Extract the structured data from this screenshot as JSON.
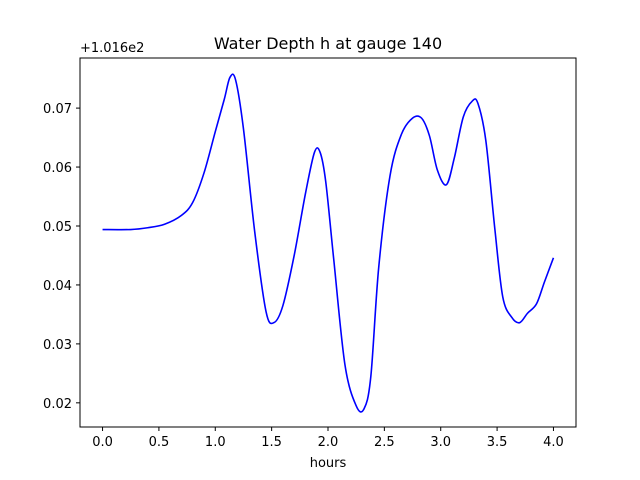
{
  "chart_data": {
    "type": "line",
    "title": "Water Depth h at gauge 140",
    "xlabel": "hours",
    "ylabel": "",
    "y_offset_label": "+1.016e2",
    "xlim": [
      -0.2,
      4.2
    ],
    "ylim": [
      0.0159,
      0.0785
    ],
    "xticks": [
      0.0,
      0.5,
      1.0,
      1.5,
      2.0,
      2.5,
      3.0,
      3.5,
      4.0
    ],
    "xtick_labels": [
      "0.0",
      "0.5",
      "1.0",
      "1.5",
      "2.0",
      "2.5",
      "3.0",
      "3.5",
      "4.0"
    ],
    "yticks": [
      0.02,
      0.03,
      0.04,
      0.05,
      0.06,
      0.07
    ],
    "ytick_labels": [
      "0.02",
      "0.03",
      "0.04",
      "0.05",
      "0.06",
      "0.07"
    ],
    "grid": false,
    "series": [
      {
        "color": "#0000ff",
        "x": [
          0.0,
          0.25,
          0.4,
          0.55,
          0.7,
          0.8,
          0.9,
          1.0,
          1.08,
          1.13,
          1.18,
          1.25,
          1.35,
          1.45,
          1.52,
          1.6,
          1.7,
          1.8,
          1.88,
          1.93,
          1.98,
          2.05,
          2.15,
          2.25,
          2.32,
          2.38,
          2.45,
          2.55,
          2.65,
          2.75,
          2.83,
          2.9,
          2.97,
          3.05,
          3.12,
          3.2,
          3.28,
          3.33,
          3.4,
          3.48,
          3.55,
          3.63,
          3.7,
          3.77,
          3.85,
          3.92,
          4.0
        ],
        "y": [
          0.0494,
          0.0494,
          0.0497,
          0.0503,
          0.0518,
          0.054,
          0.059,
          0.066,
          0.0715,
          0.0752,
          0.0748,
          0.0665,
          0.049,
          0.0355,
          0.0336,
          0.0365,
          0.045,
          0.0555,
          0.0625,
          0.0625,
          0.0575,
          0.0445,
          0.0265,
          0.0195,
          0.019,
          0.0245,
          0.043,
          0.0585,
          0.0655,
          0.0683,
          0.0683,
          0.0653,
          0.0595,
          0.057,
          0.0615,
          0.0685,
          0.0712,
          0.0708,
          0.0645,
          0.0495,
          0.038,
          0.0345,
          0.0336,
          0.0352,
          0.0368,
          0.0405,
          0.0446
        ]
      }
    ]
  }
}
